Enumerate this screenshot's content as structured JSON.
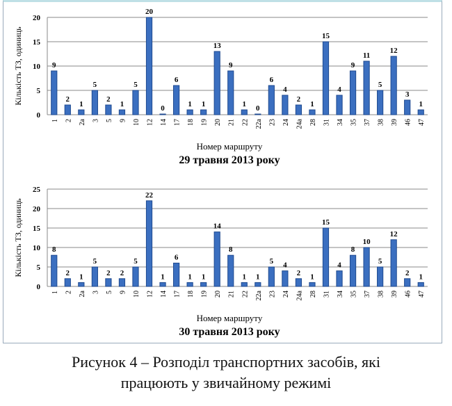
{
  "chart_data": [
    {
      "type": "bar",
      "title": "29 травня 2013 року",
      "xlabel": "Номер маршруту",
      "ylabel": "Кількість ТЗ, одиниць",
      "ylim": [
        0,
        20
      ],
      "yticks": [
        0,
        5,
        10,
        15,
        20
      ],
      "grid": true,
      "categories": [
        "1",
        "2",
        "2а",
        "3",
        "5",
        "9",
        "10",
        "12",
        "14",
        "17",
        "18",
        "19",
        "20",
        "21",
        "22",
        "22а",
        "23",
        "24",
        "24а",
        "28",
        "31",
        "34",
        "35",
        "37",
        "38",
        "39",
        "46",
        "47"
      ],
      "values": [
        9,
        2,
        1,
        5,
        2,
        1,
        5,
        20,
        0,
        6,
        1,
        1,
        13,
        9,
        1,
        0,
        6,
        4,
        2,
        1,
        15,
        4,
        9,
        11,
        5,
        12,
        3,
        1
      ]
    },
    {
      "type": "bar",
      "title": "30 травня 2013 року",
      "xlabel": "Номер маршруту",
      "ylabel": "Кількість ТЗ, одиниць",
      "ylim": [
        0,
        25
      ],
      "yticks": [
        0,
        5,
        10,
        15,
        20,
        25
      ],
      "grid": true,
      "categories": [
        "1",
        "2",
        "2а",
        "3",
        "5",
        "9",
        "10",
        "12",
        "14",
        "17",
        "18",
        "19",
        "20",
        "21",
        "22",
        "22а",
        "23",
        "24",
        "24а",
        "28",
        "31",
        "34",
        "35",
        "37",
        "38",
        "39",
        "46",
        "47"
      ],
      "values": [
        8,
        2,
        1,
        5,
        2,
        2,
        5,
        22,
        1,
        6,
        1,
        1,
        14,
        8,
        1,
        1,
        5,
        4,
        2,
        1,
        15,
        4,
        8,
        10,
        5,
        12,
        2,
        1
      ]
    }
  ],
  "colors": {
    "bar": "#3b6fc0",
    "bar_dark": "#1f4a8f",
    "grid": "#888888"
  },
  "caption": {
    "line1": "Рисунок 4 – Розподіл транспортних засобів, які",
    "line2": "працюють у звичайному режимі"
  }
}
